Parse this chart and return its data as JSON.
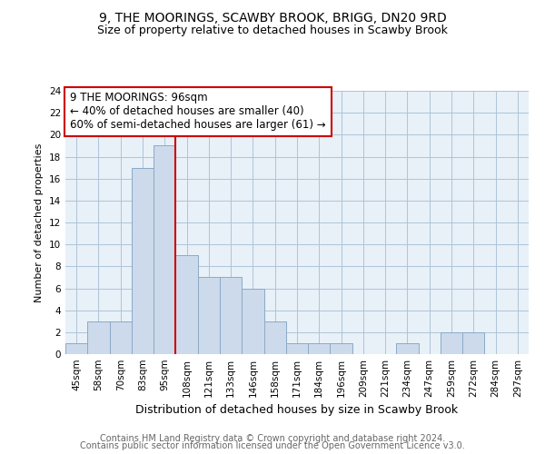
{
  "title": "9, THE MOORINGS, SCAWBY BROOK, BRIGG, DN20 9RD",
  "subtitle": "Size of property relative to detached houses in Scawby Brook",
  "xlabel": "Distribution of detached houses by size in Scawby Brook",
  "ylabel": "Number of detached properties",
  "categories": [
    "45sqm",
    "58sqm",
    "70sqm",
    "83sqm",
    "95sqm",
    "108sqm",
    "121sqm",
    "133sqm",
    "146sqm",
    "158sqm",
    "171sqm",
    "184sqm",
    "196sqm",
    "209sqm",
    "221sqm",
    "234sqm",
    "247sqm",
    "259sqm",
    "272sqm",
    "284sqm",
    "297sqm"
  ],
  "values": [
    1,
    3,
    3,
    17,
    19,
    9,
    7,
    7,
    6,
    3,
    1,
    1,
    1,
    0,
    0,
    1,
    0,
    2,
    2,
    0,
    0
  ],
  "bar_color": "#ccdaeb",
  "bar_edgecolor": "#8aaac8",
  "grid_color": "#aec4d8",
  "bg_color": "#e8f0f8",
  "vline_x": 4.5,
  "vline_color": "#cc0000",
  "annotation_text": "9 THE MOORINGS: 96sqm\n← 40% of detached houses are smaller (40)\n60% of semi-detached houses are larger (61) →",
  "annotation_box_color": "#cc0000",
  "ylim": [
    0,
    24
  ],
  "yticks": [
    0,
    2,
    4,
    6,
    8,
    10,
    12,
    14,
    16,
    18,
    20,
    22,
    24
  ],
  "footer1": "Contains HM Land Registry data © Crown copyright and database right 2024.",
  "footer2": "Contains public sector information licensed under the Open Government Licence v3.0.",
  "title_fontsize": 10,
  "subtitle_fontsize": 9,
  "xlabel_fontsize": 9,
  "ylabel_fontsize": 8,
  "tick_fontsize": 7.5,
  "annotation_fontsize": 8.5,
  "footer_fontsize": 7
}
